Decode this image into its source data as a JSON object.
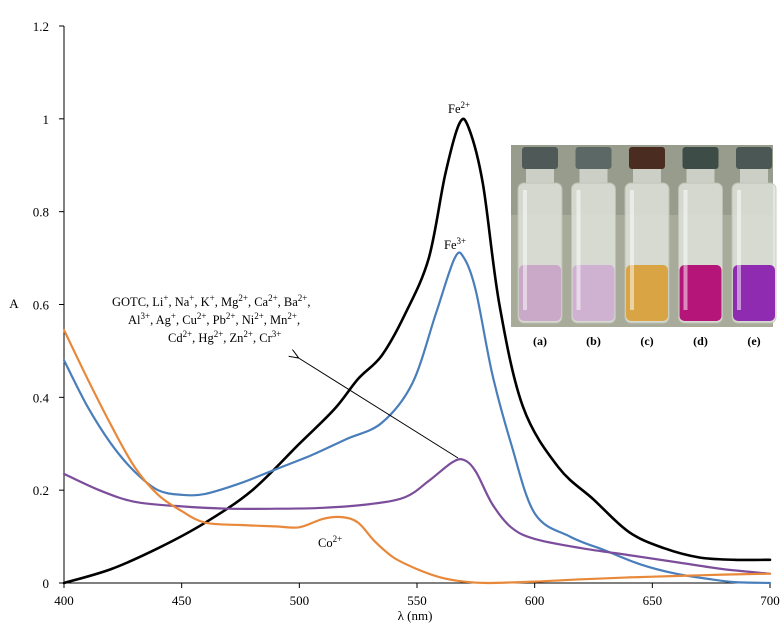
{
  "chart_data": {
    "type": "line",
    "title": "",
    "xlabel": "λ (nm)",
    "ylabel": "A",
    "xlim": [
      400,
      700
    ],
    "ylim": [
      0,
      1.2
    ],
    "x_ticks": [
      400,
      450,
      500,
      550,
      600,
      650,
      700
    ],
    "y_ticks": [
      0,
      0.2,
      0.4,
      0.6,
      0.8,
      1,
      1.2
    ],
    "y_tick_labels": [
      "0",
      "0.2",
      "0.4",
      "0.6",
      "0.8",
      "1",
      "1.2"
    ],
    "grid": false,
    "series": [
      {
        "name": "Fe2+",
        "color": "#000000",
        "points": [
          [
            400,
            0
          ],
          [
            420,
            0.03
          ],
          [
            440,
            0.075
          ],
          [
            460,
            0.13
          ],
          [
            480,
            0.2
          ],
          [
            500,
            0.3
          ],
          [
            515,
            0.375
          ],
          [
            525,
            0.44
          ],
          [
            535,
            0.49
          ],
          [
            545,
            0.58
          ],
          [
            555,
            0.7
          ],
          [
            562,
            0.88
          ],
          [
            568,
            0.99
          ],
          [
            572,
            0.98
          ],
          [
            578,
            0.86
          ],
          [
            585,
            0.6
          ],
          [
            595,
            0.38
          ],
          [
            610,
            0.25
          ],
          [
            625,
            0.18
          ],
          [
            640,
            0.11
          ],
          [
            655,
            0.075
          ],
          [
            670,
            0.055
          ],
          [
            685,
            0.05
          ],
          [
            700,
            0.05
          ]
        ]
      },
      {
        "name": "Fe3+",
        "color": "#4a7ebb",
        "points": [
          [
            400,
            0.48
          ],
          [
            410,
            0.38
          ],
          [
            420,
            0.3
          ],
          [
            430,
            0.24
          ],
          [
            440,
            0.2
          ],
          [
            450,
            0.19
          ],
          [
            460,
            0.192
          ],
          [
            475,
            0.215
          ],
          [
            490,
            0.245
          ],
          [
            505,
            0.275
          ],
          [
            520,
            0.31
          ],
          [
            535,
            0.345
          ],
          [
            548,
            0.43
          ],
          [
            558,
            0.58
          ],
          [
            566,
            0.7
          ],
          [
            570,
            0.7
          ],
          [
            575,
            0.63
          ],
          [
            582,
            0.45
          ],
          [
            590,
            0.3
          ],
          [
            600,
            0.15
          ],
          [
            615,
            0.1
          ],
          [
            630,
            0.07
          ],
          [
            645,
            0.04
          ],
          [
            660,
            0.02
          ],
          [
            675,
            0.008
          ],
          [
            685,
            0.002
          ],
          [
            700,
            0
          ]
        ]
      },
      {
        "name": "GOTC, Li+, Na+, K+, Mg2+, Ca2+, Ba2+, Al3+, Ag+, Cu2+, Pb2+, Ni2+, Mn2+, Cd2+, Hg2+, Zn2+, Cr3+",
        "color": "#7b4d9a",
        "points": [
          [
            400,
            0.235
          ],
          [
            415,
            0.2
          ],
          [
            430,
            0.175
          ],
          [
            450,
            0.165
          ],
          [
            470,
            0.16
          ],
          [
            490,
            0.16
          ],
          [
            510,
            0.162
          ],
          [
            530,
            0.17
          ],
          [
            545,
            0.185
          ],
          [
            555,
            0.22
          ],
          [
            565,
            0.26
          ],
          [
            570,
            0.265
          ],
          [
            575,
            0.24
          ],
          [
            582,
            0.17
          ],
          [
            590,
            0.12
          ],
          [
            600,
            0.095
          ],
          [
            620,
            0.075
          ],
          [
            640,
            0.06
          ],
          [
            660,
            0.045
          ],
          [
            680,
            0.03
          ],
          [
            700,
            0.02
          ]
        ]
      },
      {
        "name": "Co2+",
        "color": "#e8883a",
        "points": [
          [
            400,
            0.545
          ],
          [
            410,
            0.44
          ],
          [
            420,
            0.34
          ],
          [
            430,
            0.25
          ],
          [
            440,
            0.19
          ],
          [
            450,
            0.155
          ],
          [
            460,
            0.13
          ],
          [
            475,
            0.125
          ],
          [
            490,
            0.122
          ],
          [
            500,
            0.12
          ],
          [
            510,
            0.138
          ],
          [
            518,
            0.142
          ],
          [
            525,
            0.13
          ],
          [
            532,
            0.09
          ],
          [
            540,
            0.055
          ],
          [
            550,
            0.03
          ],
          [
            560,
            0.012
          ],
          [
            570,
            0.003
          ],
          [
            580,
            0
          ],
          [
            600,
            0.003
          ],
          [
            620,
            0.008
          ],
          [
            640,
            0.012
          ],
          [
            660,
            0.015
          ],
          [
            680,
            0.018
          ],
          [
            700,
            0.02
          ]
        ]
      }
    ],
    "annotations": {
      "fe2_label": "Fe2+",
      "fe3_label": "Fe3+",
      "co2_label": "Co2+",
      "others_line1": "GOTC, Li+, Na+, K+, Mg2+, Ca2+, Ba2+,",
      "others_line2": "Al3+, Ag+, Cu2+, Pb2+, Ni2+, Mn2+,",
      "others_line3": "Cd2+, Hg2+, Zn2+, Cr3+"
    },
    "inset_photo": {
      "labels": [
        "(a)",
        "(b)",
        "(c)",
        "(d)",
        "(e)"
      ],
      "liquid_colors": [
        "#c9a8c8",
        "#cfb2d2",
        "#d8a444",
        "#b51478",
        "#8f2bb0"
      ]
    }
  }
}
